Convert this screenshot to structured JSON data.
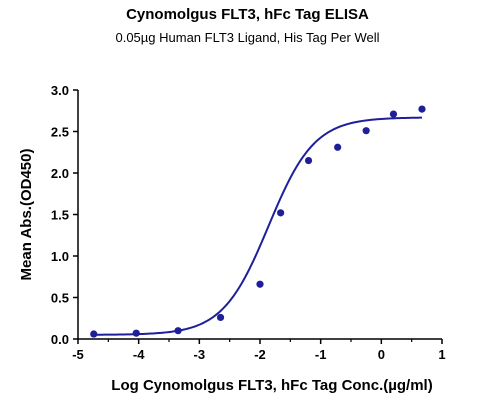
{
  "chart_data": {
    "type": "scatter",
    "title": "Cynomolgus FLT3, hFc Tag ELISA",
    "subtitle": "0.05µg Human FLT3 Ligand, His Tag Per Well",
    "xlabel": "Log Cynomolgus FLT3, hFc Tag Conc.(µg/ml)",
    "ylabel": "Mean Abs.(OD450)",
    "xlim": [
      -5,
      1
    ],
    "ylim": [
      0,
      3.0
    ],
    "xticks": [
      "-5",
      "-4",
      "-3",
      "-2",
      "-1",
      "0",
      "1"
    ],
    "yticks": [
      "0.0",
      "0.5",
      "1.0",
      "1.5",
      "2.0",
      "2.5",
      "3.0"
    ],
    "grid": false,
    "color": "#1f1f9a",
    "points": [
      {
        "x": -4.74,
        "y": 0.06
      },
      {
        "x": -4.04,
        "y": 0.07
      },
      {
        "x": -3.35,
        "y": 0.1
      },
      {
        "x": -2.65,
        "y": 0.26
      },
      {
        "x": -2.0,
        "y": 0.66
      },
      {
        "x": -1.66,
        "y": 1.52
      },
      {
        "x": -1.2,
        "y": 2.15
      },
      {
        "x": -0.72,
        "y": 2.31
      },
      {
        "x": -0.25,
        "y": 2.51
      },
      {
        "x": 0.2,
        "y": 2.71
      },
      {
        "x": 0.67,
        "y": 2.77
      }
    ],
    "fit": {
      "bottom": 0.05,
      "top": 2.67,
      "logEC50": -1.86,
      "hill": 1.15
    }
  }
}
